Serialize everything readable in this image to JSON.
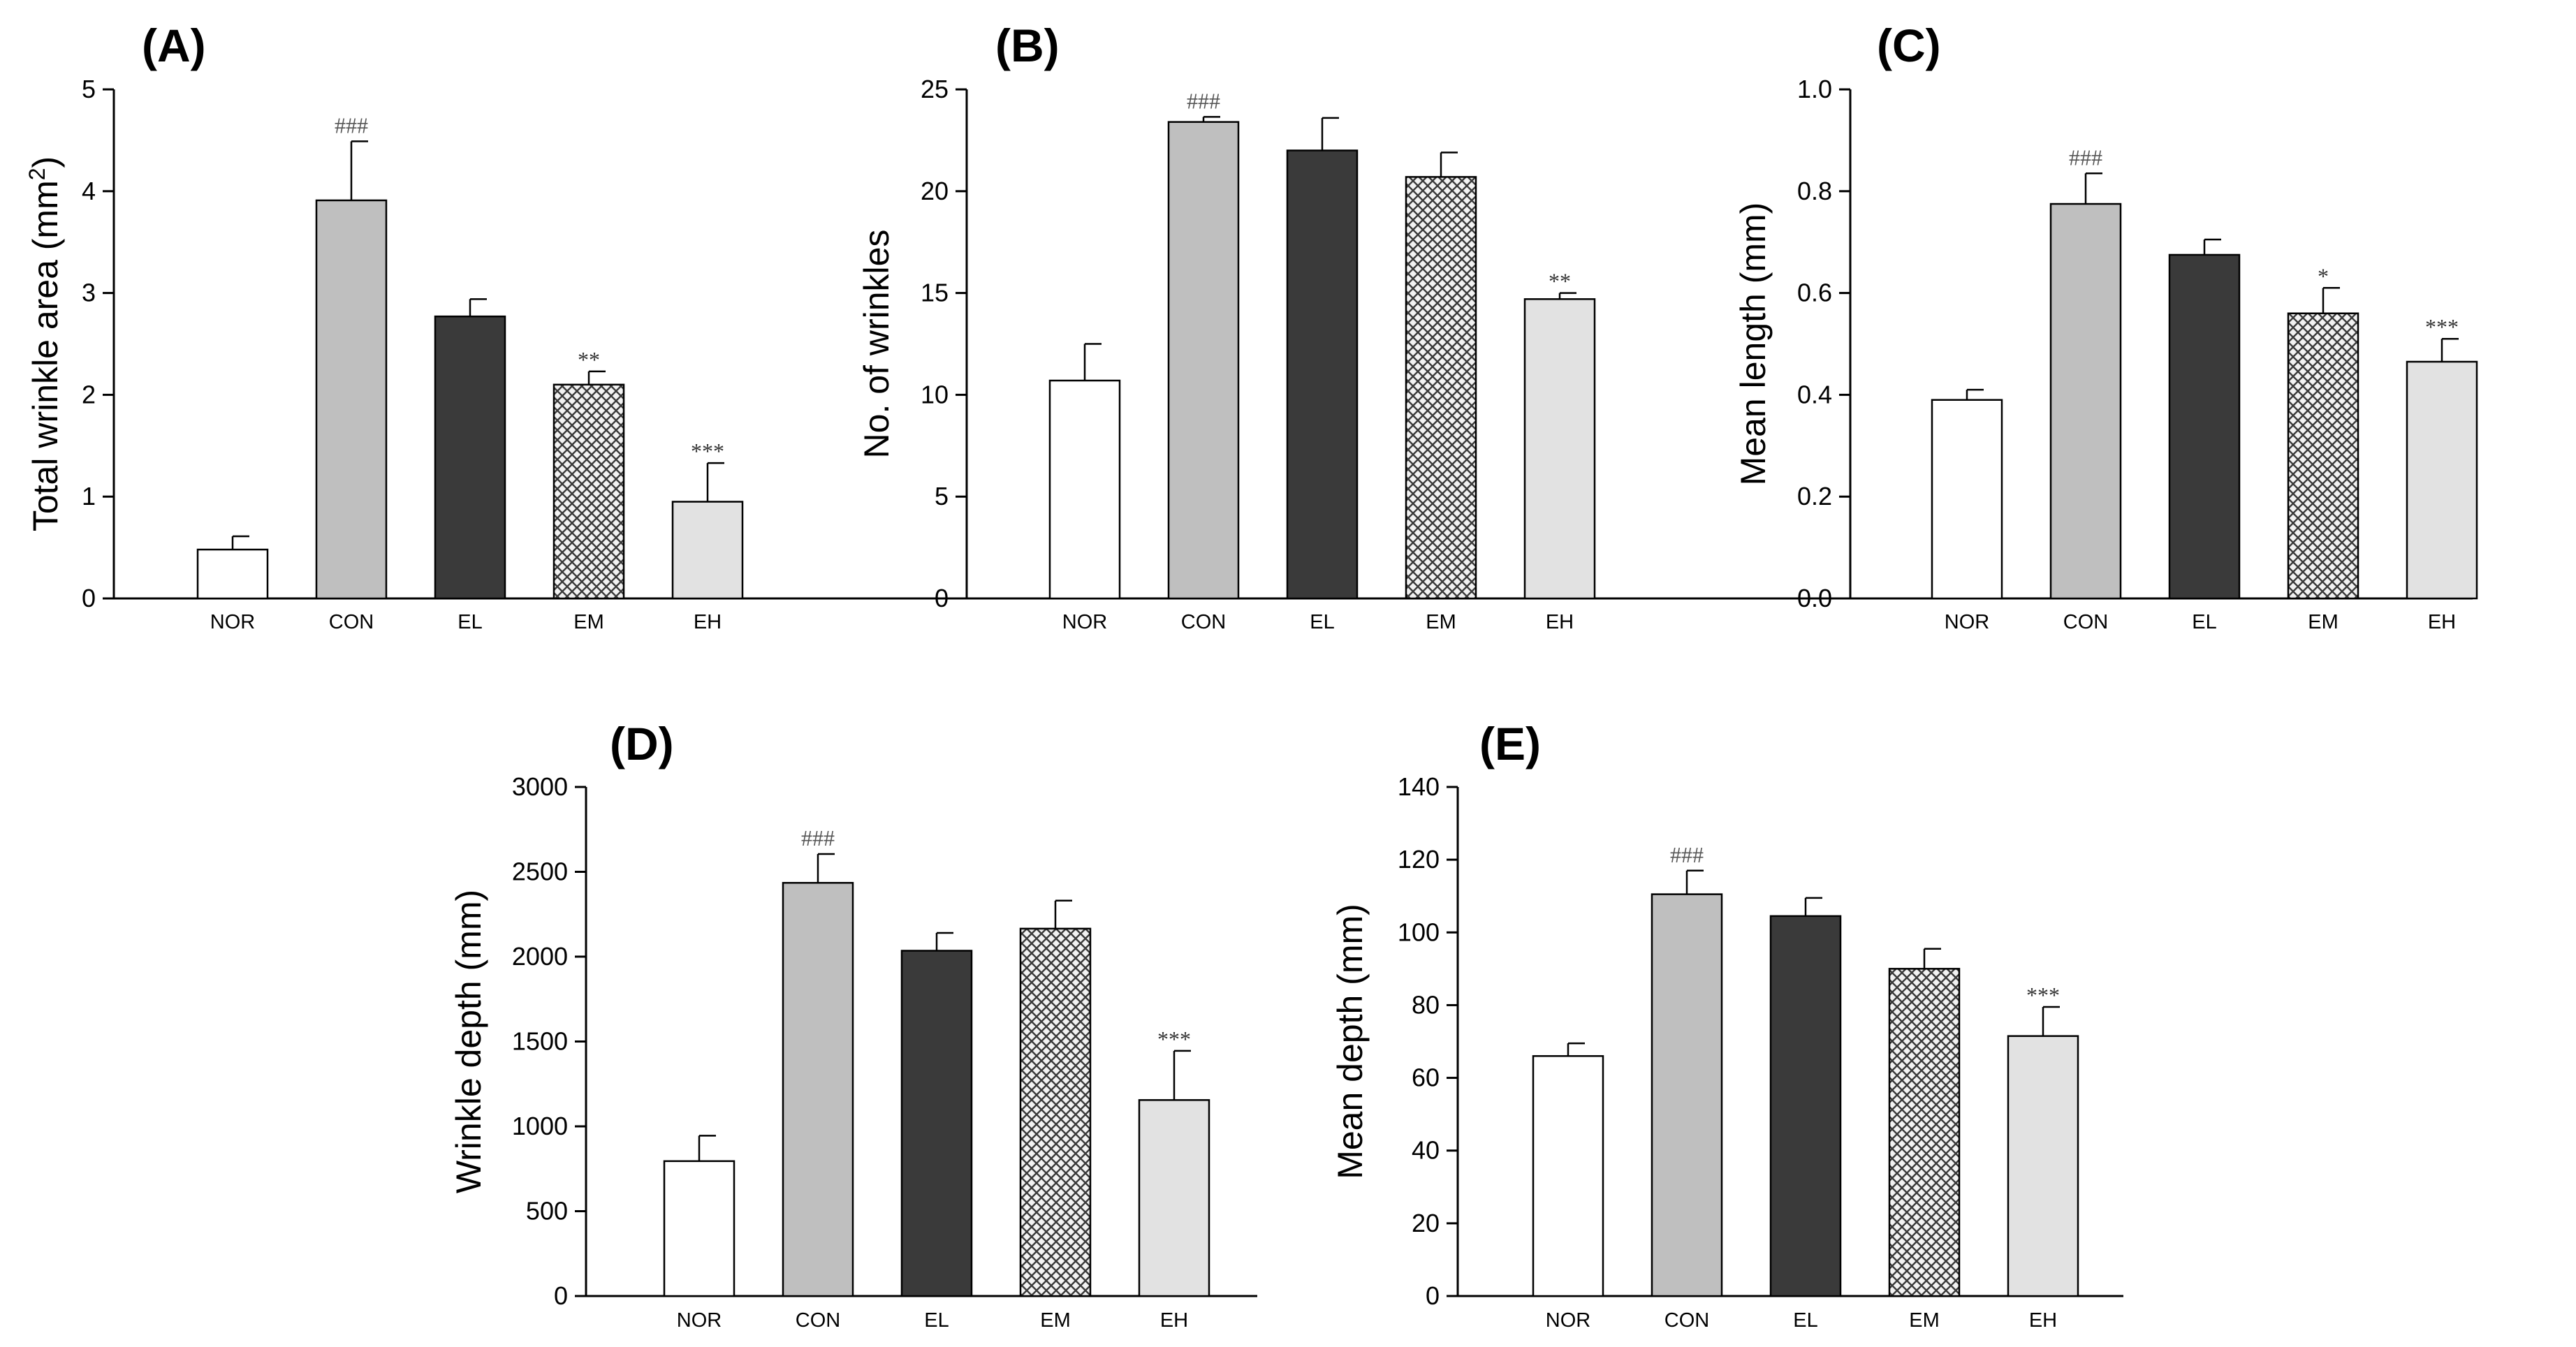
{
  "chart_data": [
    {
      "type": "bar",
      "panel_label": "(A)",
      "ylabel": "Total wrinkle area (mm",
      "ylabel_sup": "2",
      "ylabel_suffix": ")",
      "categories": [
        "NOR",
        "CON",
        "EL",
        "EM",
        "EH"
      ],
      "values": [
        0.48,
        3.91,
        2.77,
        2.1,
        0.95
      ],
      "errors": [
        0.13,
        0.58,
        0.17,
        0.13,
        0.38
      ],
      "significance": [
        "",
        "###",
        "",
        "**",
        "***"
      ],
      "ylim": [
        0,
        5
      ],
      "yticks": [
        "0",
        "1",
        "2",
        "3",
        "4",
        "5"
      ],
      "grid": false
    },
    {
      "type": "bar",
      "panel_label": "(B)",
      "ylabel": "No. of wrinkles",
      "categories": [
        "NOR",
        "CON",
        "EL",
        "EM",
        "EH"
      ],
      "values": [
        10.7,
        23.4,
        22.0,
        20.7,
        14.7
      ],
      "errors": [
        1.8,
        0.25,
        1.6,
        1.2,
        0.3
      ],
      "significance": [
        "",
        "###",
        "",
        "",
        "**"
      ],
      "ylim": [
        0,
        25
      ],
      "yticks": [
        "0",
        "5",
        "10",
        "15",
        "20",
        "25"
      ],
      "grid": false
    },
    {
      "type": "bar",
      "panel_label": "(C)",
      "ylabel": "Mean length (mm)",
      "categories": [
        "NOR",
        "CON",
        "EL",
        "EM",
        "EH"
      ],
      "values": [
        0.39,
        0.775,
        0.675,
        0.56,
        0.465
      ],
      "errors": [
        0.02,
        0.06,
        0.03,
        0.05,
        0.045
      ],
      "significance": [
        "",
        "###",
        "",
        "*",
        "***"
      ],
      "ylim": [
        0,
        1.0
      ],
      "yticks": [
        "0.0",
        "0.2",
        "0.4",
        "0.6",
        "0.8",
        "1.0"
      ],
      "grid": false
    },
    {
      "type": "bar",
      "panel_label": "(D)",
      "ylabel": "Wrinkle depth (mm)",
      "categories": [
        "NOR",
        "CON",
        "EL",
        "EM",
        "EH"
      ],
      "values": [
        795,
        2435,
        2035,
        2165,
        1155
      ],
      "errors": [
        150,
        170,
        105,
        165,
        290
      ],
      "significance": [
        "",
        "###",
        "",
        "",
        "***"
      ],
      "ylim": [
        0,
        3000
      ],
      "yticks": [
        "0",
        "500",
        "1000",
        "1500",
        "2000",
        "2500",
        "3000"
      ],
      "grid": false
    },
    {
      "type": "bar",
      "panel_label": "(E)",
      "ylabel": "Mean depth (mm)",
      "categories": [
        "NOR",
        "CON",
        "EL",
        "EM",
        "EH"
      ],
      "values": [
        66,
        110.5,
        104.5,
        90,
        71.5
      ],
      "errors": [
        3.5,
        6.5,
        5,
        5.5,
        8
      ],
      "significance": [
        "",
        "###",
        "",
        "",
        "***"
      ],
      "ylim": [
        0,
        140
      ],
      "yticks": [
        "0",
        "20",
        "40",
        "60",
        "80",
        "100",
        "120",
        "140"
      ],
      "grid": false
    }
  ],
  "bar_styles": {
    "NOR": {
      "fill": "#ffffff"
    },
    "CON": {
      "fill": "#bfbfbf"
    },
    "EL": {
      "fill": "#3a3a3a"
    },
    "EM": {
      "fill": "pattern-crosshatch"
    },
    "EH": {
      "fill": "#e2e2e2"
    }
  }
}
